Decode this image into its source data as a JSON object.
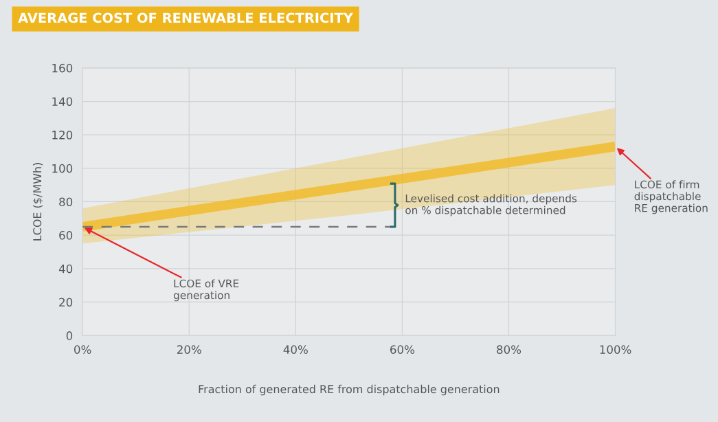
{
  "chart_data": {
    "type": "line",
    "title": "AVERAGE COST OF RENEWABLE ELECTRICITY",
    "xlabel": "Fraction of generated RE from dispatchable generation",
    "ylabel": "LCOE ($/MWh)",
    "x": [
      0,
      50,
      100
    ],
    "series": [
      {
        "color": "#f2b81c",
        "values": [
          65,
          89,
          113
        ],
        "lower": [
          55,
          72,
          90
        ],
        "upper": [
          76,
          106,
          136
        ]
      },
      {
        "color": "#7a7a7a",
        "x": [
          0,
          58
        ],
        "values": [
          65,
          65
        ],
        "line_style": "dashed"
      }
    ],
    "xlim": [
      0,
      100
    ],
    "ylim": [
      0,
      160
    ],
    "xticks": [
      {
        "value": 0,
        "label": "0%"
      },
      {
        "value": 20,
        "label": "20%"
      },
      {
        "value": 40,
        "label": "40%"
      },
      {
        "value": 60,
        "label": "60%"
      },
      {
        "value": 80,
        "label": "80%"
      },
      {
        "value": 100,
        "label": "100%"
      }
    ],
    "yticks": [
      0,
      20,
      40,
      60,
      80,
      100,
      120,
      140,
      160
    ],
    "grid": true,
    "annotations": [
      {
        "text": "LCOE of VRE\ngeneration",
        "x": 0,
        "y": 65
      },
      "LCOE of firm\ndispatchable\nRE generation",
      "Levelised cost addition, depends\non % dispatchable determined"
    ]
  }
}
